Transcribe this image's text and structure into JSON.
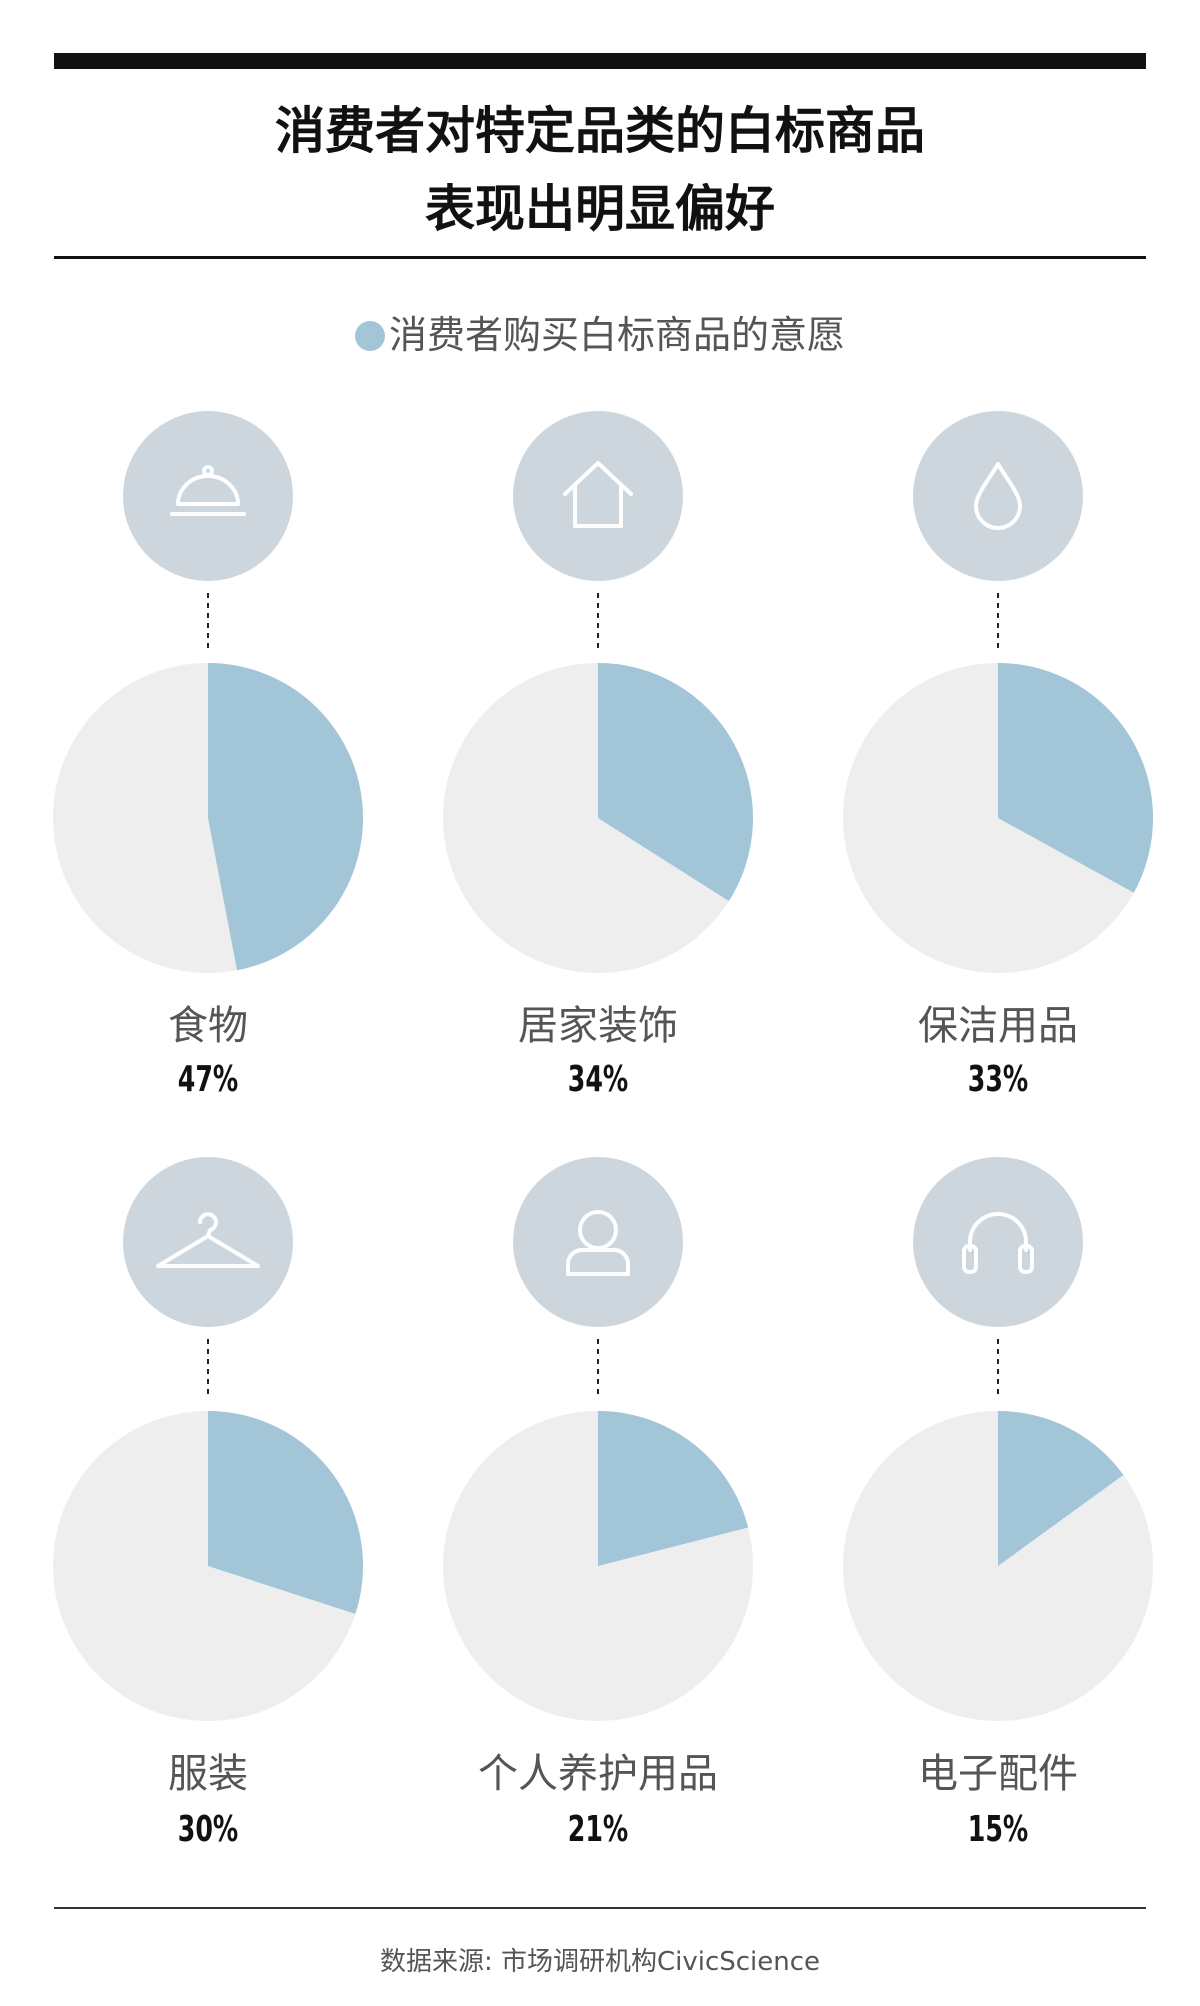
{
  "header": {
    "title_line1": "消费者对特定品类的白标商品",
    "title_line2": "表现出明显偏好"
  },
  "legend": {
    "label": "消费者购买白标商品的意愿",
    "color": "#a3c5d8"
  },
  "colors": {
    "slice": "#a3c5d8",
    "remainder": "#eeeeee",
    "icon_circle": "#cdd6dc"
  },
  "chart_data": {
    "type": "pie",
    "series_name": "消费者购买白标商品的意愿",
    "items": [
      {
        "label": "食物",
        "value": 47,
        "value_text": "47%",
        "icon": "food-cloche-icon"
      },
      {
        "label": "居家装饰",
        "value": 34,
        "value_text": "34%",
        "icon": "house-icon"
      },
      {
        "label": "保洁用品",
        "value": 33,
        "value_text": "33%",
        "icon": "water-drop-icon"
      },
      {
        "label": "服装",
        "value": 30,
        "value_text": "30%",
        "icon": "hanger-icon"
      },
      {
        "label": "个人养护用品",
        "value": 21,
        "value_text": "21%",
        "icon": "person-icon"
      },
      {
        "label": "电子配件",
        "value": 15,
        "value_text": "15%",
        "icon": "headphones-icon"
      }
    ]
  },
  "footer": {
    "source": "数据来源: 市场调研机构CivicScience"
  }
}
